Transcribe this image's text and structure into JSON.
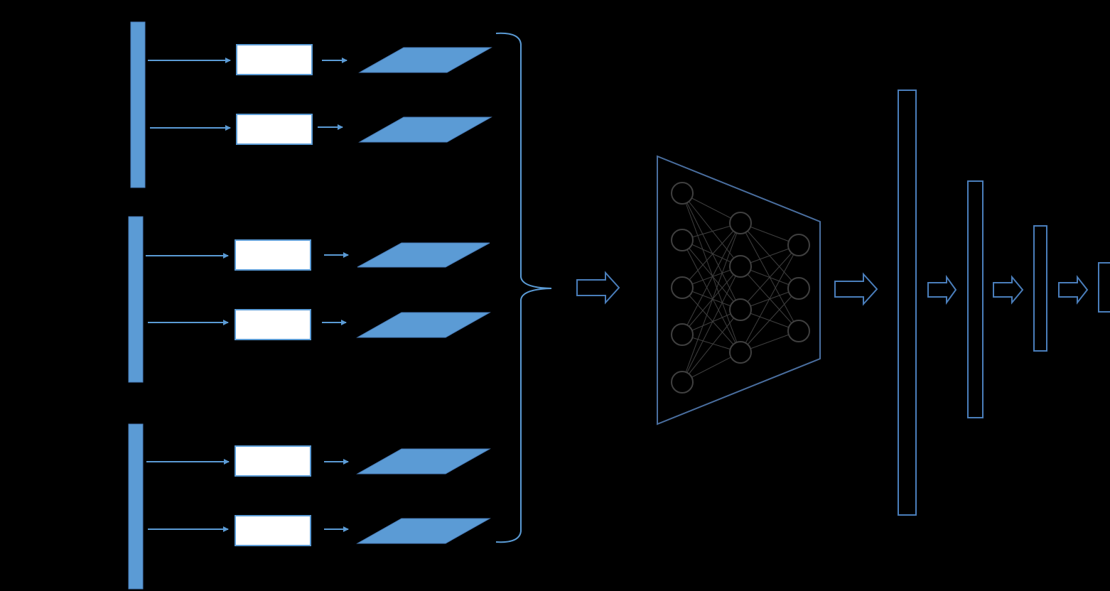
{
  "colors": {
    "background": "#000000",
    "accent_fill": "#5b9bd5",
    "accent_stroke": "#4a7ebb",
    "box_fill": "#ffffff",
    "network_stroke": "#4a6fa0",
    "neuron_stroke": "#404040"
  },
  "input_groups": [
    {
      "rows": 2
    },
    {
      "rows": 2
    },
    {
      "rows": 2
    }
  ],
  "network": {
    "layers": [
      5,
      4,
      3
    ]
  },
  "output_vectors": 4,
  "text_labels": []
}
